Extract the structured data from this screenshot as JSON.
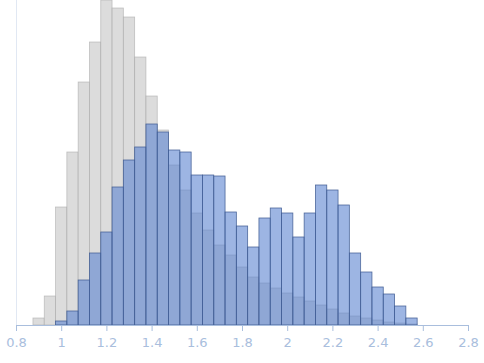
{
  "chart_data": {
    "type": "histogram",
    "bins": [
      0.875,
      0.925,
      0.975,
      1.025,
      1.075,
      1.125,
      1.175,
      1.225,
      1.275,
      1.325,
      1.375,
      1.425,
      1.475,
      1.525,
      1.575,
      1.625,
      1.675,
      1.725,
      1.775,
      1.825,
      1.875,
      1.925,
      1.975,
      2.025,
      2.075,
      2.125,
      2.175,
      2.225,
      2.275,
      2.325,
      2.375,
      2.425,
      2.475,
      2.525,
      2.575
    ],
    "series": [
      {
        "color": "#d6d6d6",
        "values": [
          7,
          29,
          118,
          173,
          243,
          283,
          325,
          317,
          308,
          268,
          229,
          195,
          160,
          135,
          112,
          95,
          80,
          70,
          58,
          48,
          42,
          37,
          32,
          28,
          24,
          20,
          16,
          12,
          9,
          7,
          5,
          3,
          2,
          1
        ]
      },
      {
        "color": "#5b84d0",
        "values": [
          0,
          0,
          4,
          14,
          45,
          72,
          93,
          138,
          165,
          178,
          201,
          193,
          175,
          173,
          150,
          150,
          149,
          113,
          99,
          78,
          107,
          117,
          112,
          88,
          112,
          140,
          135,
          120,
          72,
          53,
          38,
          31,
          19,
          7
        ]
      }
    ],
    "xlim": [
      0.8,
      2.8
    ],
    "xticks": [
      0.8,
      1,
      1.2,
      1.4,
      1.6,
      1.8,
      2,
      2.2,
      2.4,
      2.6,
      2.8
    ],
    "ylim": [
      0,
      325
    ],
    "tick_labels": "x",
    "grid": false
  }
}
